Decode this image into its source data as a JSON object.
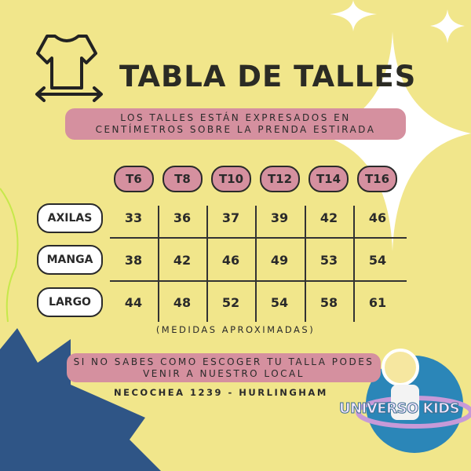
{
  "title": "TABLA DE TALLES",
  "note": {
    "line1": "LOS TALLES ESTÁN EXPRESADOS EN",
    "line2": "CENTÍMETROS SOBRE LA PRENDA ESTIRADA"
  },
  "sizes": [
    "T6",
    "T8",
    "T10",
    "T12",
    "T14",
    "T16"
  ],
  "rows": [
    {
      "label": "AXILAS",
      "values": [
        "33",
        "36",
        "37",
        "39",
        "42",
        "46"
      ]
    },
    {
      "label": "MANGA",
      "values": [
        "38",
        "42",
        "46",
        "49",
        "53",
        "54"
      ]
    },
    {
      "label": "LARGO",
      "values": [
        "44",
        "48",
        "52",
        "54",
        "58",
        "61"
      ]
    }
  ],
  "disclaimer": "(MEDIDAS APROXIMADAS)",
  "cta": {
    "line1": "SI NO SABES COMO ESCOGER TU TALLA PODES",
    "line2": "VENIR A NUESTRO LOCAL"
  },
  "address": "NECOCHEA 1239 - HURLINGHAM",
  "logo": {
    "text": "UNIVERSO KIDS"
  },
  "colors": {
    "background": "#f1e68b",
    "pink": "#d5909f",
    "blue": "#2f5586"
  },
  "icons": [
    "t-shirt-measure-icon",
    "sparkle-icon",
    "astronaut-logo"
  ]
}
